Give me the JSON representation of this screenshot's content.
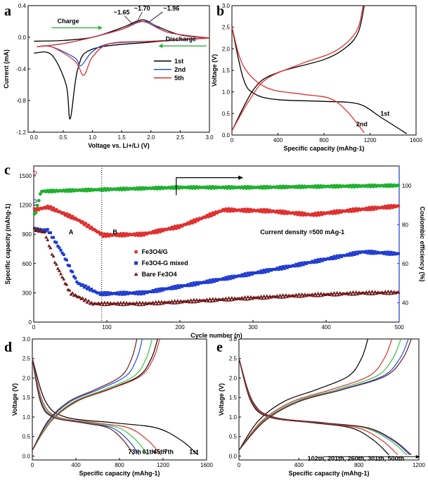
{
  "chart_data": [
    {
      "panel": "a",
      "type": "line",
      "xlabel": "Voltage vs. Li+/Li (V)",
      "ylabel": "Current (mA)",
      "xlim": [
        -0.1,
        3.0
      ],
      "ylim": [
        -1.2,
        0.4
      ],
      "xticks": [
        "0.0",
        "0.5",
        "1.0",
        "1.5",
        "2.0",
        "2.5",
        "3.0"
      ],
      "yticks": [
        "0.4",
        "0.0",
        "-0.4",
        "-0.8",
        "-1.2"
      ],
      "annotations": [
        "~1.65",
        "~1.70",
        "~1.96",
        "Charge",
        "Discharge"
      ],
      "legend": [
        "1st",
        "2nd",
        "5th"
      ],
      "series": [
        {
          "name": "1st",
          "color": "#000000",
          "upper": [
            [
              0,
              -0.05
            ],
            [
              0.5,
              -0.04
            ],
            [
              1.0,
              0.0
            ],
            [
              1.5,
              0.12
            ],
            [
              1.85,
              0.22
            ],
            [
              2.1,
              0.14
            ],
            [
              2.5,
              0.03
            ],
            [
              3.0,
              -0.01
            ]
          ],
          "lower": [
            [
              3.0,
              -0.01
            ],
            [
              2.0,
              -0.06
            ],
            [
              1.0,
              -0.15
            ],
            [
              0.75,
              -0.4
            ],
            [
              0.62,
              -1.03
            ],
            [
              0.55,
              -0.6
            ],
            [
              0.3,
              -0.22
            ],
            [
              0.0,
              -0.2
            ]
          ]
        },
        {
          "name": "2nd",
          "color": "#2050e0",
          "upper": [
            [
              0.05,
              -0.12
            ],
            [
              0.5,
              -0.08
            ],
            [
              1.0,
              0.0
            ],
            [
              1.5,
              0.1
            ],
            [
              1.9,
              0.2
            ],
            [
              2.3,
              0.06
            ],
            [
              3.0,
              -0.01
            ]
          ],
          "lower": [
            [
              3.0,
              -0.01
            ],
            [
              2.0,
              -0.05
            ],
            [
              1.3,
              -0.08
            ],
            [
              1.0,
              -0.18
            ],
            [
              0.8,
              -0.36
            ],
            [
              0.7,
              -0.26
            ],
            [
              0.3,
              -0.12
            ],
            [
              0.05,
              -0.12
            ]
          ]
        },
        {
          "name": "5th",
          "color": "#e03030",
          "upper": [
            [
              0.05,
              -0.12
            ],
            [
              0.5,
              -0.08
            ],
            [
              1.0,
              0.0
            ],
            [
              1.5,
              0.1
            ],
            [
              1.85,
              0.2
            ],
            [
              2.3,
              0.06
            ],
            [
              3.0,
              -0.01
            ]
          ],
          "lower": [
            [
              3.0,
              -0.01
            ],
            [
              2.0,
              -0.05
            ],
            [
              1.3,
              -0.08
            ],
            [
              1.0,
              -0.25
            ],
            [
              0.85,
              -0.48
            ],
            [
              0.7,
              -0.3
            ],
            [
              0.3,
              -0.12
            ],
            [
              0.05,
              -0.12
            ]
          ]
        }
      ]
    },
    {
      "panel": "b",
      "type": "line",
      "xlabel": "Specific capacity (mAhg-1)",
      "ylabel": "Voltage (V)",
      "xlim": [
        0,
        1600
      ],
      "ylim": [
        0.0,
        3.0
      ],
      "xticks": [
        "0",
        "400",
        "800",
        "1200",
        "1600"
      ],
      "yticks": [
        "0.0",
        "0.5",
        "1.0",
        "1.5",
        "2.0",
        "2.5",
        "3.0"
      ],
      "annotations": [
        "1st",
        "2nd"
      ],
      "series": [
        {
          "name": "1st discharge",
          "color": "#000000",
          "points": [
            [
              0,
              2.5
            ],
            [
              100,
              1.3
            ],
            [
              200,
              0.95
            ],
            [
              400,
              0.82
            ],
            [
              800,
              0.78
            ],
            [
              1100,
              0.72
            ],
            [
              1300,
              0.4
            ],
            [
              1520,
              0.03
            ]
          ]
        },
        {
          "name": "1st charge",
          "color": "#000000",
          "points": [
            [
              0,
              0.1
            ],
            [
              200,
              1.1
            ],
            [
              400,
              1.45
            ],
            [
              800,
              1.75
            ],
            [
              1000,
              2.05
            ],
            [
              1100,
              2.4
            ],
            [
              1150,
              3.0
            ]
          ]
        },
        {
          "name": "2nd discharge",
          "color": "#e03030",
          "points": [
            [
              0,
              2.5
            ],
            [
              100,
              1.6
            ],
            [
              300,
              1.1
            ],
            [
              600,
              0.95
            ],
            [
              850,
              0.85
            ],
            [
              1000,
              0.55
            ],
            [
              1150,
              0.05
            ]
          ]
        },
        {
          "name": "2nd charge",
          "color": "#e03030",
          "points": [
            [
              0,
              0.1
            ],
            [
              150,
              0.8
            ],
            [
              300,
              1.3
            ],
            [
              600,
              1.65
            ],
            [
              900,
              1.95
            ],
            [
              1080,
              2.4
            ],
            [
              1140,
              3.0
            ]
          ]
        }
      ]
    },
    {
      "panel": "c",
      "type": "scatter",
      "xlabel": "Cycle number (n)",
      "ylabel": "Specific capacity (mAhg-1)",
      "y2label": "Coulombic efficiency (%)",
      "xlim": [
        0,
        500
      ],
      "ylim": [
        0,
        1600
      ],
      "y2lim": [
        30,
        110
      ],
      "xticks": [
        "0",
        "100",
        "200",
        "300",
        "400",
        "500"
      ],
      "yticks": [
        "0",
        "300",
        "600",
        "900",
        "1200",
        "1500"
      ],
      "y2ticks": [
        "40",
        "60",
        "80",
        "100"
      ],
      "annotations": [
        "A",
        "B",
        "Current density =500 mAg-1"
      ],
      "legend": [
        "Fe3O4/G",
        "Fe3O4-G mixed",
        "Bare Fe3O4"
      ],
      "series": [
        {
          "name": "Fe3O4/G",
          "color": "#e03030",
          "points": [
            [
              2,
              1150
            ],
            [
              20,
              1180
            ],
            [
              60,
              1050
            ],
            [
              95,
              890
            ],
            [
              150,
              900
            ],
            [
              200,
              980
            ],
            [
              260,
              1150
            ],
            [
              320,
              1140
            ],
            [
              380,
              1100
            ],
            [
              440,
              1150
            ],
            [
              500,
              1190
            ]
          ]
        },
        {
          "name": "Fe3O4-G mixed",
          "color": "#1e3ad0",
          "points": [
            [
              2,
              950
            ],
            [
              20,
              940
            ],
            [
              40,
              700
            ],
            [
              60,
              400
            ],
            [
              90,
              290
            ],
            [
              150,
              300
            ],
            [
              250,
              430
            ],
            [
              350,
              570
            ],
            [
              450,
              720
            ],
            [
              500,
              700
            ]
          ]
        },
        {
          "name": "Bare Fe3O4",
          "color": "#701818",
          "points": [
            [
              2,
              950
            ],
            [
              15,
              920
            ],
            [
              30,
              600
            ],
            [
              50,
              300
            ],
            [
              80,
              190
            ],
            [
              150,
              190
            ],
            [
              250,
              230
            ],
            [
              350,
              270
            ],
            [
              450,
              300
            ],
            [
              500,
              305
            ]
          ]
        },
        {
          "name": "Coulombic efficiency",
          "color": "#20b030",
          "axis": "y2",
          "points": [
            [
              2,
              85
            ],
            [
              10,
              97
            ],
            [
              100,
              98
            ],
            [
              200,
              99
            ],
            [
              300,
              99
            ],
            [
              400,
              99.5
            ],
            [
              500,
              100
            ]
          ]
        }
      ]
    },
    {
      "panel": "d",
      "type": "line",
      "xlabel": "Specific capacity (mAhg-1)",
      "ylabel": "Voltage (V)",
      "xlim": [
        0,
        1600
      ],
      "ylim": [
        -0.1,
        3.0
      ],
      "xticks": [
        "0",
        "400",
        "800",
        "1200",
        "1600"
      ],
      "yticks": [
        "0.0",
        "0.5",
        "1.0",
        "1.5",
        "2.0",
        "2.5",
        "3.0"
      ],
      "annotations": [
        "73th",
        "61th",
        "45th",
        "7th",
        "1st"
      ],
      "series": [
        {
          "name": "1st",
          "color": "#000000",
          "dis_end": 1520,
          "ch_end": 1150
        },
        {
          "name": "7th",
          "color": "#e03030",
          "dis_end": 1180,
          "ch_end": 1170
        },
        {
          "name": "45th",
          "color": "#40c040",
          "dis_end": 1060,
          "ch_end": 1100
        },
        {
          "name": "61th",
          "color": "#2050e0",
          "dis_end": 980,
          "ch_end": 1010
        },
        {
          "name": "73th",
          "color": "#701818",
          "dis_end": 930,
          "ch_end": 960
        }
      ]
    },
    {
      "panel": "e",
      "type": "line",
      "xlabel": "Specific capacity (mAhg-1)",
      "ylabel": "Voltage (V)",
      "xlim": [
        0,
        1200
      ],
      "ylim": [
        -0.1,
        3.0
      ],
      "xticks": [
        "0",
        "400",
        "800",
        "1200"
      ],
      "yticks": [
        "0.0",
        "0.5",
        "1.0",
        "1.5",
        "2.0",
        "2.5",
        "3.0"
      ],
      "annotations": [
        "102th, 201th, 260th, 301th, 500th"
      ],
      "series": [
        {
          "name": "102th",
          "color": "#000000",
          "dis_end": 1000,
          "ch_end": 860
        },
        {
          "name": "201th",
          "color": "#e03030",
          "dis_end": 1060,
          "ch_end": 1020
        },
        {
          "name": "260th",
          "color": "#40c040",
          "dis_end": 1120,
          "ch_end": 1080
        },
        {
          "name": "301th",
          "color": "#2050e0",
          "dis_end": 1140,
          "ch_end": 1130
        },
        {
          "name": "500th",
          "color": "#701818",
          "dis_end": 1150,
          "ch_end": 1150
        }
      ]
    }
  ],
  "panel_labels": {
    "a": "a",
    "b": "b",
    "c": "c",
    "d": "d",
    "e": "e"
  }
}
